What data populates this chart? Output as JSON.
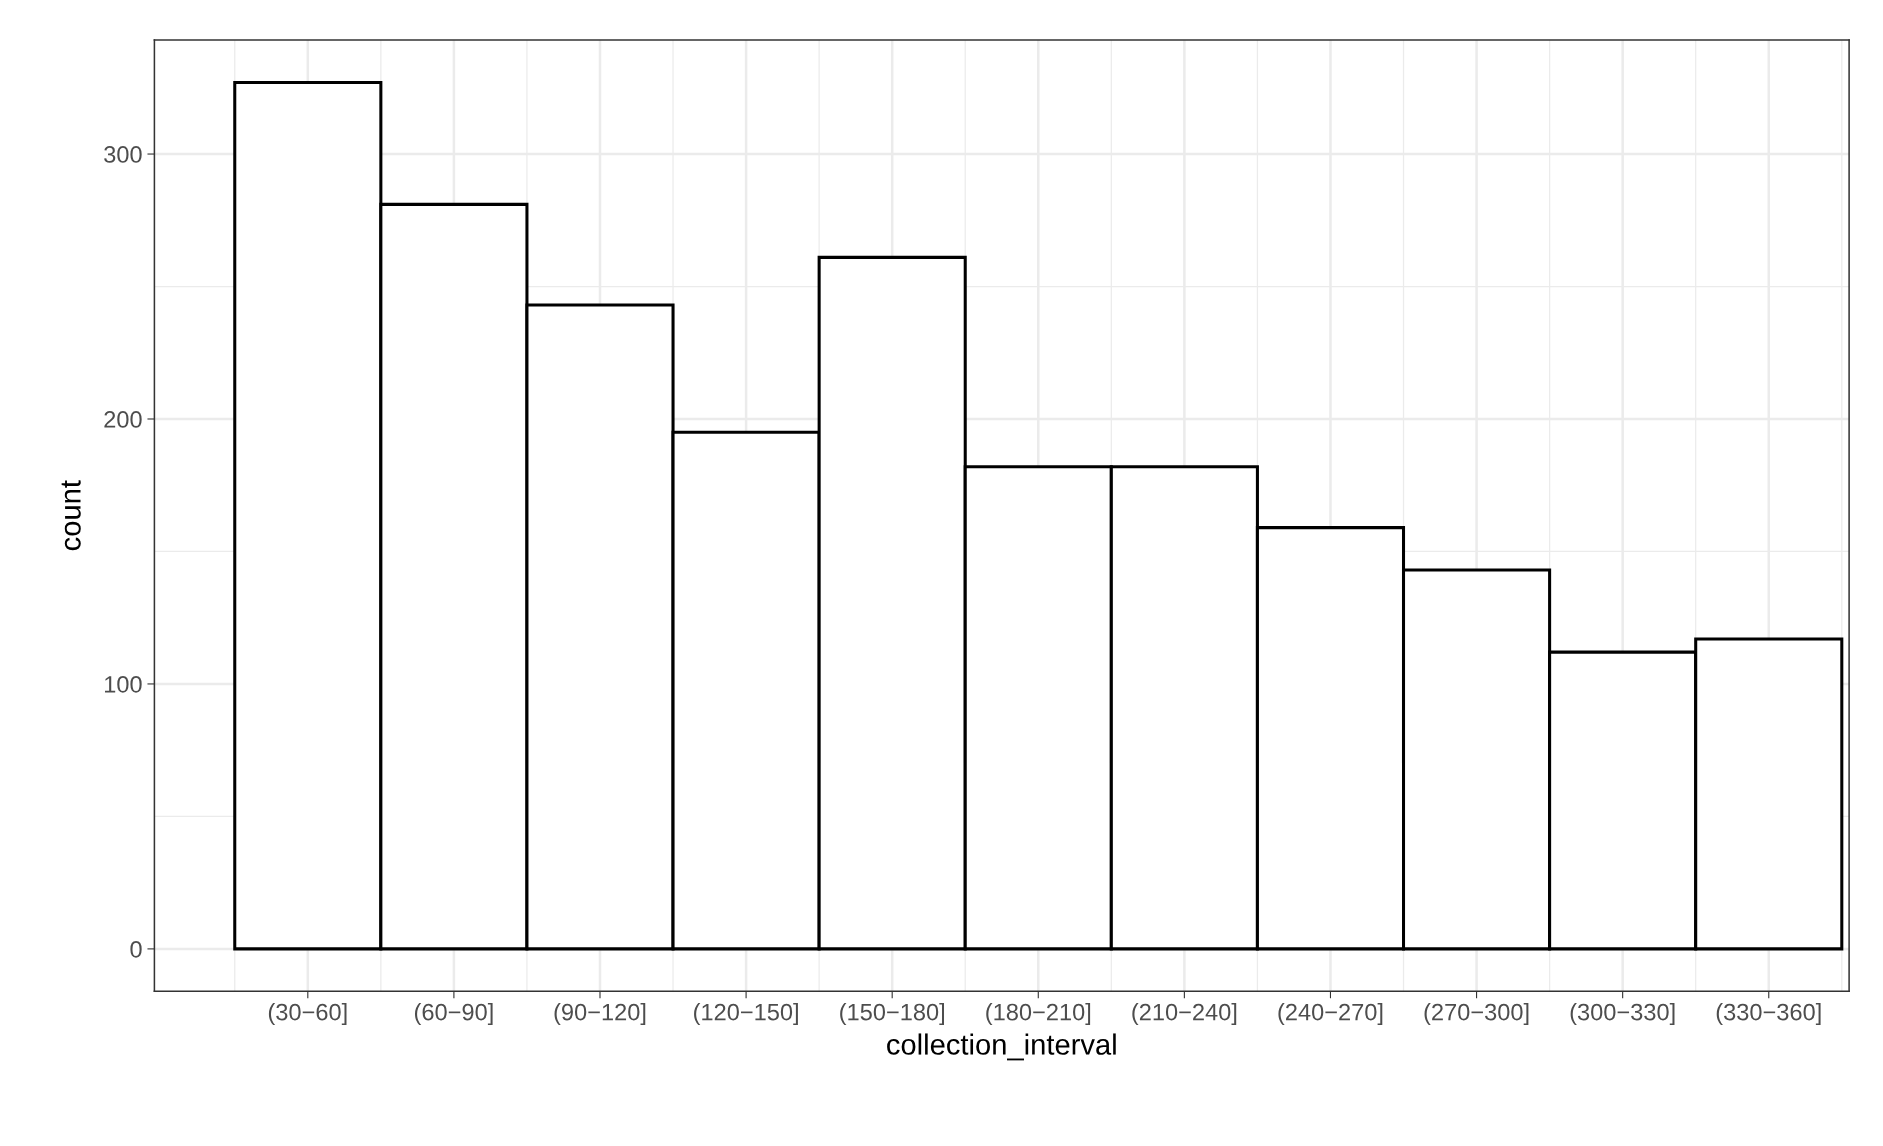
{
  "chart_data": {
    "type": "bar",
    "xlabel": "collection_interval",
    "ylabel": "count",
    "categories": [
      "(30−60]",
      "(60−90]",
      "(90−120]",
      "(120−150]",
      "(150−180]",
      "(180−210]",
      "(210−240]",
      "(240−270]",
      "(270−300]",
      "(300−330]",
      "(330−360]"
    ],
    "values": [
      327,
      281,
      243,
      195,
      261,
      182,
      182,
      159,
      143,
      112,
      117
    ],
    "color": "#ffffff",
    "ylim": [
      -16,
      343
    ],
    "yticks": [
      0,
      100,
      200,
      300
    ],
    "grid": true
  }
}
